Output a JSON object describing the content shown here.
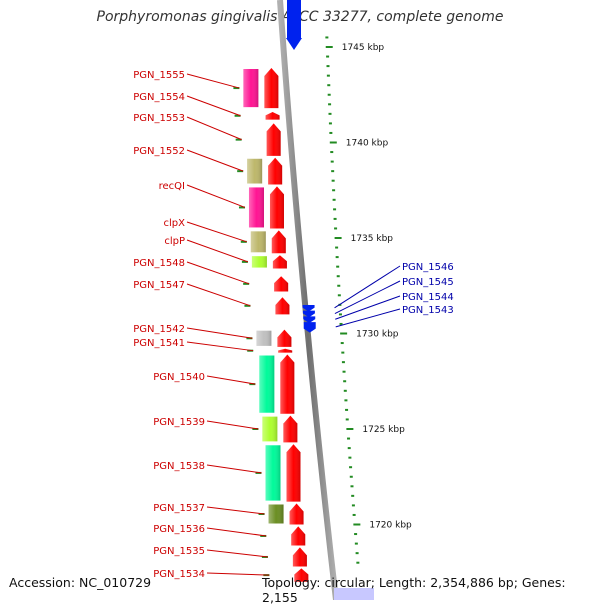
{
  "title": "Porphyromonas gingivalis ATCC 33277, complete genome",
  "footer": {
    "accession": "Accession: NC_010729",
    "summary": "Topology: circular; Length: 2,354,886 bp; Genes: 2,155"
  },
  "colors": {
    "forward_gene": "#ff0000",
    "reverse_gene": "#0022ee",
    "label_forward": "#cc0000",
    "label_reverse": "#0000aa",
    "backbone": "#808080",
    "ticks": "#228b22"
  },
  "scale": {
    "unit": "kbp",
    "labels": [
      {
        "kbp": 1745,
        "text": "1745 kbp"
      },
      {
        "kbp": 1740,
        "text": "1740 kbp"
      },
      {
        "kbp": 1735,
        "text": "1735 kbp"
      },
      {
        "kbp": 1730,
        "text": "1730 kbp"
      },
      {
        "kbp": 1725,
        "text": "1725 kbp"
      },
      {
        "kbp": 1720,
        "text": "1720 kbp"
      }
    ]
  },
  "forward_genes": [
    {
      "name": "PGN_1555",
      "start": 1743.9,
      "end": 1741.8,
      "category_color": "#ff1493"
    },
    {
      "name": "PGN_1554",
      "start": 1741.6,
      "end": 1741.2,
      "category_color": ""
    },
    {
      "name": "PGN_1553",
      "start": 1741.0,
      "end": 1739.3,
      "category_color": ""
    },
    {
      "name": "PGN_1552",
      "start": 1739.2,
      "end": 1737.8,
      "category_color": "#bdb76b"
    },
    {
      "name": "recQI",
      "start": 1737.7,
      "end": 1735.5,
      "category_color": "#ff1493"
    },
    {
      "name": "clpX",
      "start": 1735.4,
      "end": 1734.2,
      "category_color": "#bdb76b"
    },
    {
      "name": "clpP",
      "start": 1734.1,
      "end": 1733.4,
      "category_color": "#adff2f"
    },
    {
      "name": "PGN_1548",
      "start": 1733.0,
      "end": 1732.2,
      "category_color": ""
    },
    {
      "name": "PGN_1547",
      "start": 1731.9,
      "end": 1731.0,
      "category_color": ""
    },
    {
      "name": "PGN_1542",
      "start": 1730.2,
      "end": 1729.3,
      "category_color": "#c0c0c0"
    },
    {
      "name": "PGN_1541",
      "start": 1729.2,
      "end": 1729.0,
      "category_color": ""
    },
    {
      "name": "PGN_1540",
      "start": 1728.9,
      "end": 1725.8,
      "category_color": "#00fa9a"
    },
    {
      "name": "PGN_1539",
      "start": 1725.7,
      "end": 1724.3,
      "category_color": "#adff2f"
    },
    {
      "name": "PGN_1538",
      "start": 1724.2,
      "end": 1721.2,
      "category_color": "#00fa9a"
    },
    {
      "name": "PGN_1537",
      "start": 1721.1,
      "end": 1720.0,
      "category_color": "#6b8e23"
    },
    {
      "name": "PGN_1536",
      "start": 1719.9,
      "end": 1718.9,
      "category_color": ""
    },
    {
      "name": "PGN_1535",
      "start": 1718.8,
      "end": 1717.8,
      "category_color": ""
    },
    {
      "name": "PGN_1534",
      "start": 1717.7,
      "end": 1717.0,
      "category_color": ""
    }
  ],
  "reverse_genes": [
    {
      "name": "PGN_1546",
      "start": 1731.6,
      "end": 1731.3
    },
    {
      "name": "PGN_1545",
      "start": 1731.3,
      "end": 1731.0
    },
    {
      "name": "PGN_1544",
      "start": 1731.0,
      "end": 1730.7
    },
    {
      "name": "PGN_1543",
      "start": 1730.7,
      "end": 1730.2
    }
  ]
}
